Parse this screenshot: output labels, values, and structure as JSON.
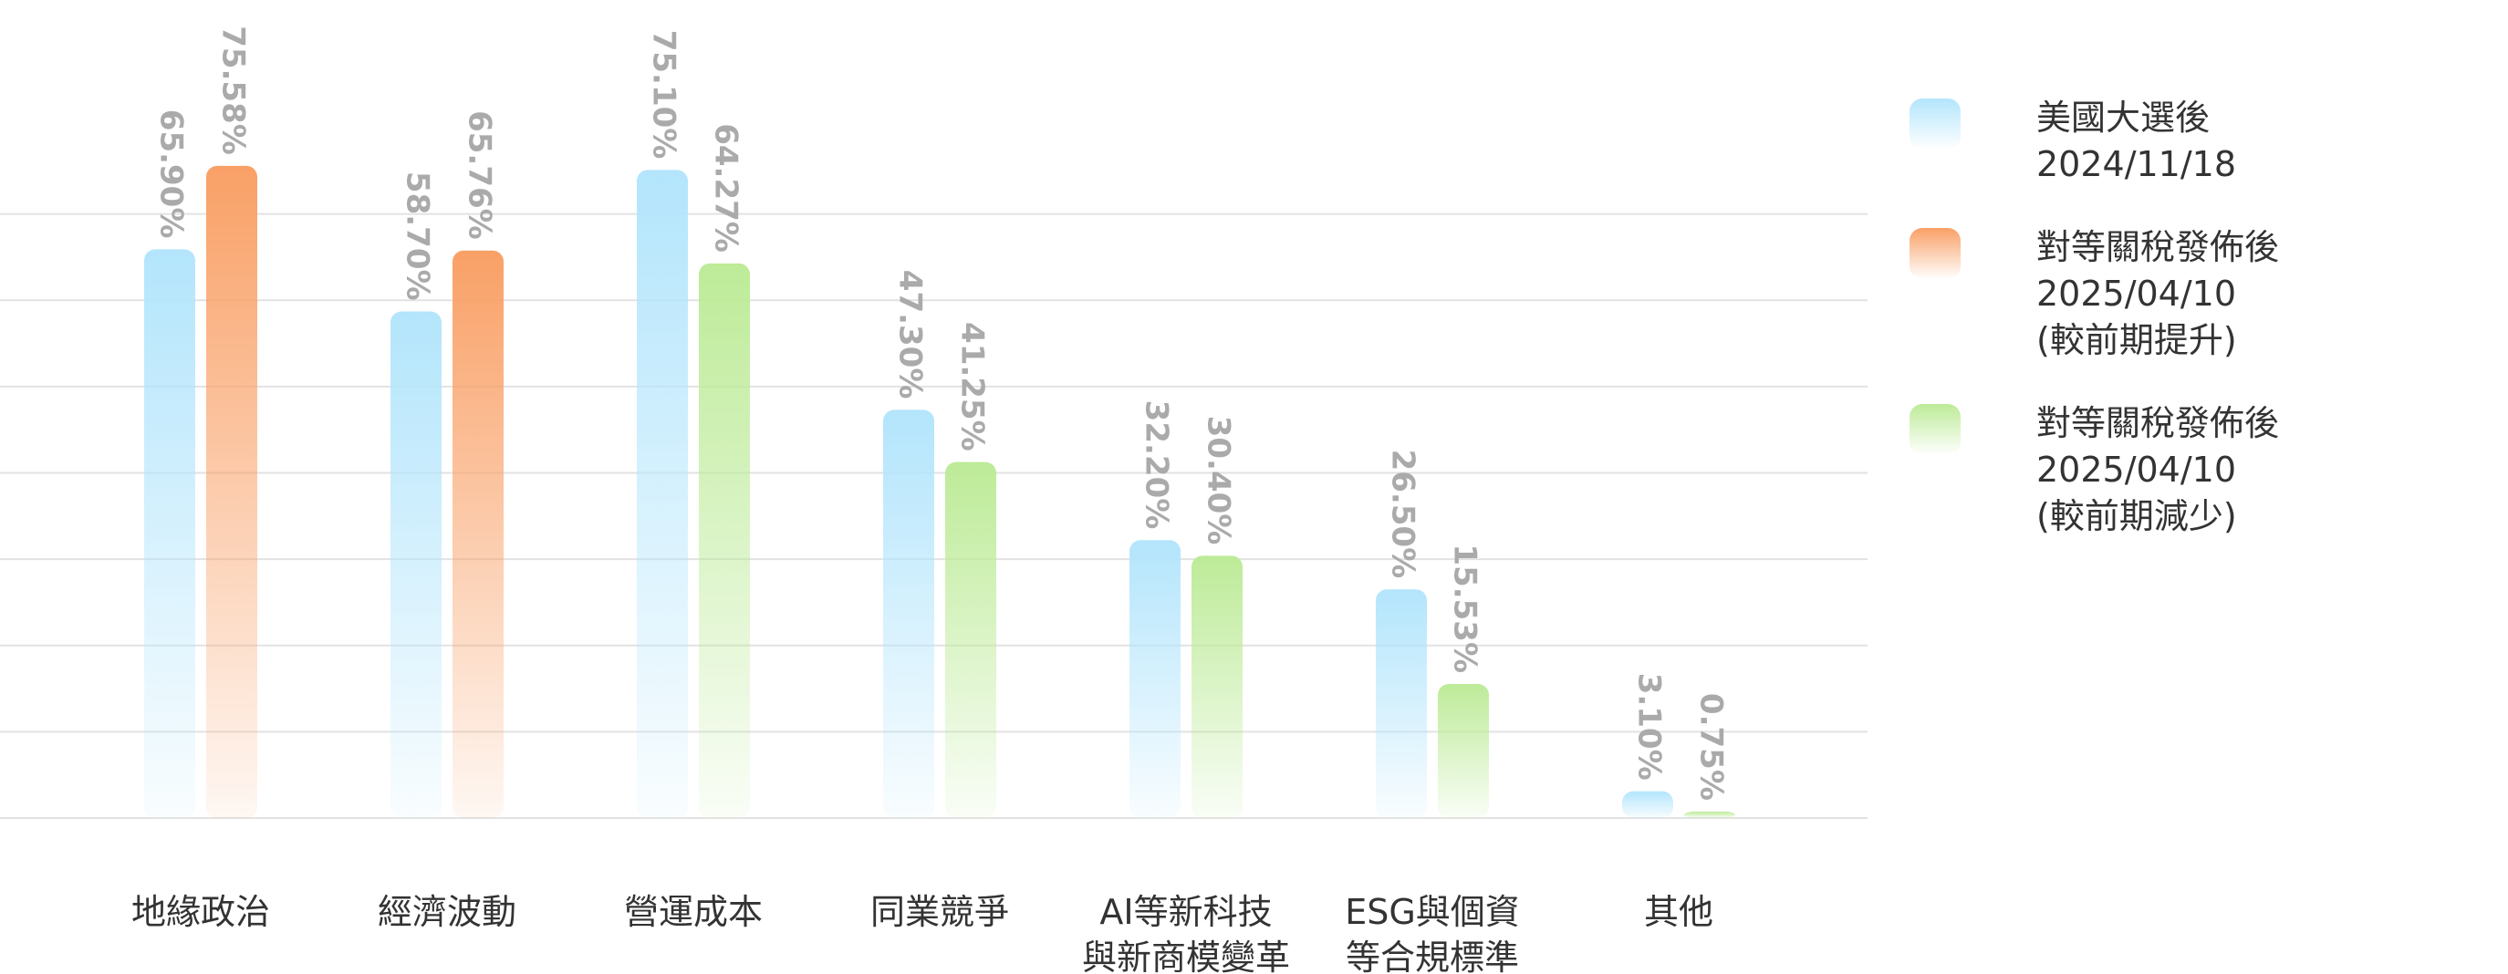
{
  "chart_data": {
    "type": "bar",
    "categories": [
      "地緣政治",
      "經濟波動",
      "營運成本",
      "同業競爭",
      "AI等新科技\n與新商模變革",
      "ESG與個資\n等合規標準",
      "其他"
    ],
    "series": [
      {
        "name": "美國大選後\n2024/11/18",
        "color": "#b3e5fc",
        "values": [
          65.9,
          58.7,
          75.1,
          47.3,
          32.2,
          26.5,
          3.1
        ],
        "value_labels": [
          "65.90%",
          "58.70%",
          "75.10%",
          "47.30%",
          "32.20%",
          "26.50%",
          "3.10%"
        ]
      },
      {
        "name": "對等關稅發佈後\n2025/04/10\n(較前期提升)",
        "color": "#f9a066",
        "values": [
          75.58,
          65.76,
          null,
          null,
          null,
          null,
          null
        ],
        "value_labels": [
          "75.58%",
          "65.76%",
          null,
          null,
          null,
          null,
          null
        ]
      },
      {
        "name": "對等關稅發佈後\n2025/04/10\n(較前期減少)",
        "color": "#bdeb98",
        "values": [
          null,
          null,
          64.27,
          41.25,
          30.4,
          15.53,
          0.75
        ],
        "value_labels": [
          null,
          null,
          "64.27%",
          "41.25%",
          "30.40%",
          "15.53%",
          "0.75%"
        ]
      }
    ],
    "ylim": [
      0,
      80
    ],
    "yticks": [
      0,
      10,
      20,
      30,
      40,
      50,
      60,
      70
    ],
    "grid": true
  }
}
